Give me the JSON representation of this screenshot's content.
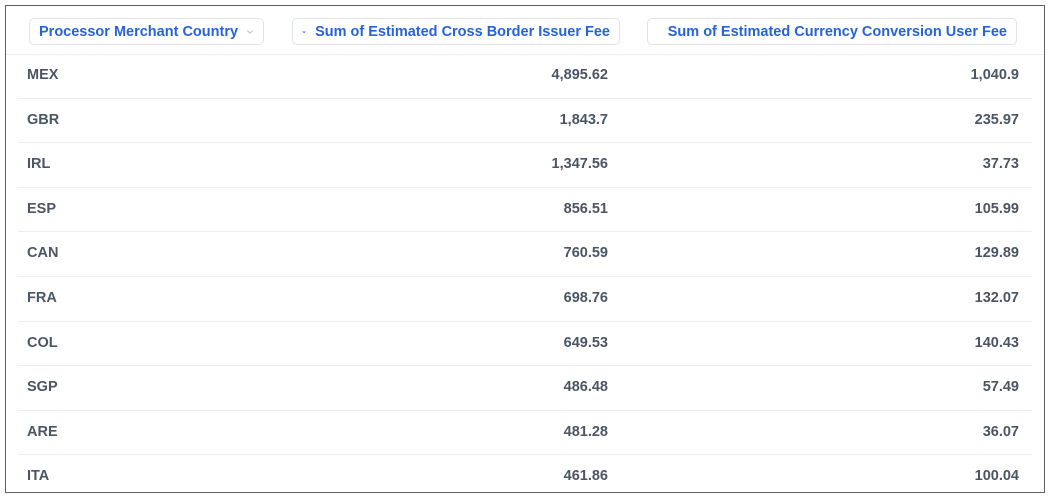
{
  "header": {
    "columns": [
      {
        "label": "Processor Merchant Country",
        "icon": "chevron-down-icon"
      },
      {
        "label": "Sum of Estimated Cross Border Issuer Fee",
        "icon": "chevron-down-icon"
      },
      {
        "label": "Sum of Estimated Currency Conversion User Fee",
        "icon": "chevron-down-icon"
      }
    ]
  },
  "rows": [
    {
      "country": "MEX",
      "cross_border_fee": "4,895.62",
      "conversion_fee": "1,040.9"
    },
    {
      "country": "GBR",
      "cross_border_fee": "1,843.7",
      "conversion_fee": "235.97"
    },
    {
      "country": "IRL",
      "cross_border_fee": "1,347.56",
      "conversion_fee": "37.73"
    },
    {
      "country": "ESP",
      "cross_border_fee": "856.51",
      "conversion_fee": "105.99"
    },
    {
      "country": "CAN",
      "cross_border_fee": "760.59",
      "conversion_fee": "129.89"
    },
    {
      "country": "FRA",
      "cross_border_fee": "698.76",
      "conversion_fee": "132.07"
    },
    {
      "country": "COL",
      "cross_border_fee": "649.53",
      "conversion_fee": "140.43"
    },
    {
      "country": "SGP",
      "cross_border_fee": "486.48",
      "conversion_fee": "57.49"
    },
    {
      "country": "ARE",
      "cross_border_fee": "481.28",
      "conversion_fee": "36.07"
    },
    {
      "country": "ITA",
      "cross_border_fee": "461.86",
      "conversion_fee": "100.04"
    }
  ],
  "colors": {
    "accent": "#2563d9",
    "text": "#4b5563",
    "divider": "#eceef1",
    "pill_border": "#dfe3ea"
  }
}
